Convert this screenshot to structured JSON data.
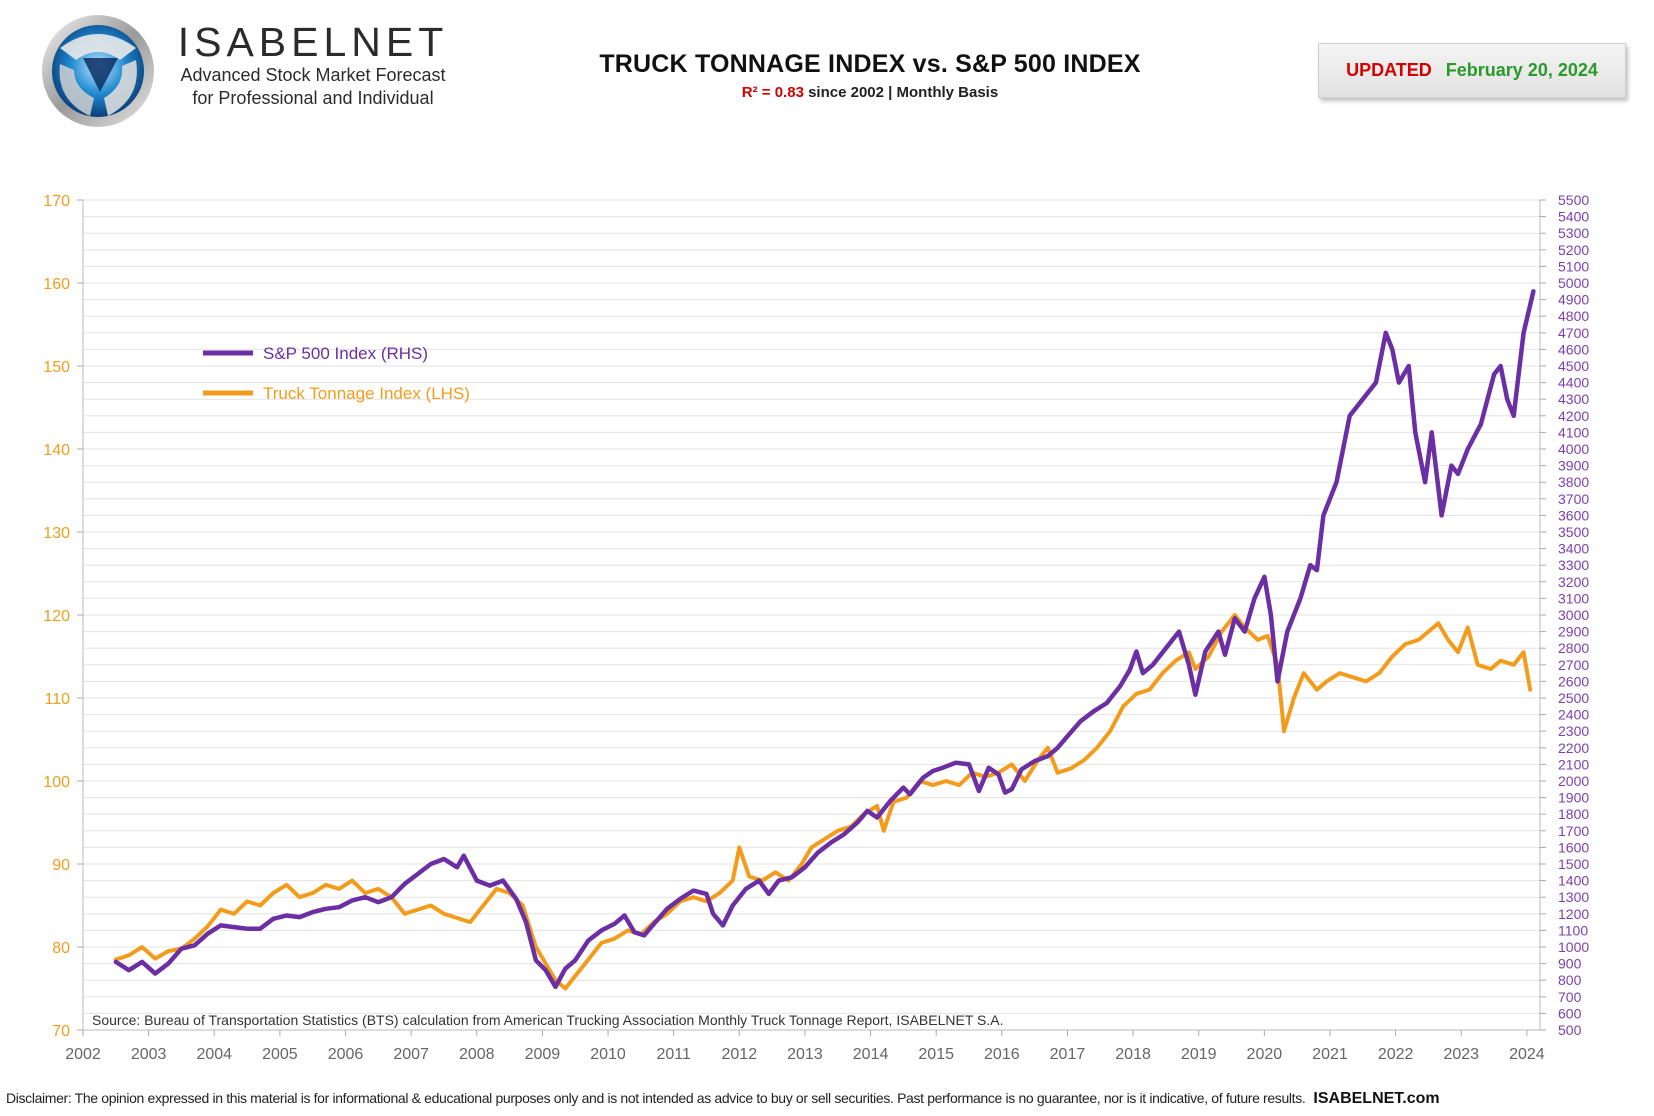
{
  "brand": {
    "name": "ISABELNET",
    "tagline_1": "Advanced Stock Market Forecast",
    "tagline_2": "for Professional and Individual"
  },
  "header": {
    "title": "TRUCK TONNAGE INDEX vs. S&P 500 INDEX",
    "r2_label": "R² = 0.83",
    "subtitle_rest": " since 2002 | Monthly Basis",
    "updated_label": "UPDATED",
    "updated_date": "February 20, 2024"
  },
  "chart_data": {
    "type": "line",
    "colors": {
      "sp500": "#6b2fa3",
      "truck": "#f39c1c",
      "left_axis": "#f39c1c",
      "right_axis": "#7b3fb0"
    },
    "x_ticks": [
      "2002",
      "2003",
      "2004",
      "2005",
      "2006",
      "2007",
      "2008",
      "2009",
      "2010",
      "2011",
      "2012",
      "2013",
      "2014",
      "2015",
      "2016",
      "2017",
      "2018",
      "2019",
      "2020",
      "2021",
      "2022",
      "2023",
      "2024"
    ],
    "x_range": [
      2002.0,
      2024.2
    ],
    "y_left": {
      "label": "Truck Tonnage Index (LHS)",
      "range": [
        70,
        170
      ],
      "ticks": [
        70,
        80,
        90,
        100,
        110,
        120,
        130,
        140,
        150,
        160,
        170
      ]
    },
    "y_right": {
      "label": "S&P 500 Index (RHS)",
      "range": [
        500,
        5500
      ],
      "ticks": [
        500,
        600,
        700,
        800,
        900,
        1000,
        1100,
        1200,
        1300,
        1400,
        1500,
        1600,
        1700,
        1800,
        1900,
        2000,
        2100,
        2200,
        2300,
        2400,
        2500,
        2600,
        2700,
        2800,
        2900,
        3000,
        3100,
        3200,
        3300,
        3400,
        3500,
        3600,
        3700,
        3800,
        3900,
        4000,
        4100,
        4200,
        4300,
        4400,
        4500,
        4600,
        4700,
        4800,
        4900,
        5000,
        5100,
        5200,
        5300,
        5400,
        5500
      ]
    },
    "legend_position": "top-left",
    "grid": true,
    "series": [
      {
        "name": "S&P 500 Index (RHS)",
        "axis": "right",
        "points": [
          [
            2002.5,
            910
          ],
          [
            2002.7,
            860
          ],
          [
            2002.9,
            910
          ],
          [
            2003.1,
            840
          ],
          [
            2003.3,
            900
          ],
          [
            2003.5,
            990
          ],
          [
            2003.7,
            1010
          ],
          [
            2003.9,
            1080
          ],
          [
            2004.1,
            1130
          ],
          [
            2004.3,
            1120
          ],
          [
            2004.5,
            1110
          ],
          [
            2004.7,
            1110
          ],
          [
            2004.9,
            1170
          ],
          [
            2005.1,
            1190
          ],
          [
            2005.3,
            1180
          ],
          [
            2005.5,
            1210
          ],
          [
            2005.7,
            1230
          ],
          [
            2005.9,
            1240
          ],
          [
            2006.1,
            1280
          ],
          [
            2006.3,
            1300
          ],
          [
            2006.5,
            1270
          ],
          [
            2006.7,
            1300
          ],
          [
            2006.9,
            1380
          ],
          [
            2007.1,
            1440
          ],
          [
            2007.3,
            1500
          ],
          [
            2007.5,
            1530
          ],
          [
            2007.7,
            1480
          ],
          [
            2007.8,
            1550
          ],
          [
            2008.0,
            1400
          ],
          [
            2008.2,
            1370
          ],
          [
            2008.4,
            1400
          ],
          [
            2008.6,
            1290
          ],
          [
            2008.75,
            1150
          ],
          [
            2008.9,
            920
          ],
          [
            2009.05,
            860
          ],
          [
            2009.2,
            760
          ],
          [
            2009.35,
            870
          ],
          [
            2009.5,
            920
          ],
          [
            2009.7,
            1040
          ],
          [
            2009.9,
            1100
          ],
          [
            2010.1,
            1140
          ],
          [
            2010.25,
            1190
          ],
          [
            2010.4,
            1090
          ],
          [
            2010.55,
            1070
          ],
          [
            2010.7,
            1140
          ],
          [
            2010.9,
            1230
          ],
          [
            2011.1,
            1290
          ],
          [
            2011.3,
            1340
          ],
          [
            2011.5,
            1320
          ],
          [
            2011.6,
            1200
          ],
          [
            2011.75,
            1130
          ],
          [
            2011.9,
            1250
          ],
          [
            2012.1,
            1350
          ],
          [
            2012.3,
            1400
          ],
          [
            2012.45,
            1320
          ],
          [
            2012.6,
            1400
          ],
          [
            2012.8,
            1420
          ],
          [
            2013.0,
            1480
          ],
          [
            2013.2,
            1570
          ],
          [
            2013.4,
            1630
          ],
          [
            2013.6,
            1680
          ],
          [
            2013.8,
            1750
          ],
          [
            2013.95,
            1820
          ],
          [
            2014.1,
            1780
          ],
          [
            2014.3,
            1880
          ],
          [
            2014.5,
            1960
          ],
          [
            2014.6,
            1920
          ],
          [
            2014.8,
            2020
          ],
          [
            2014.95,
            2060
          ],
          [
            2015.1,
            2080
          ],
          [
            2015.3,
            2110
          ],
          [
            2015.5,
            2100
          ],
          [
            2015.65,
            1940
          ],
          [
            2015.8,
            2080
          ],
          [
            2015.95,
            2040
          ],
          [
            2016.05,
            1930
          ],
          [
            2016.15,
            1950
          ],
          [
            2016.3,
            2070
          ],
          [
            2016.5,
            2120
          ],
          [
            2016.7,
            2150
          ],
          [
            2016.85,
            2200
          ],
          [
            2017.0,
            2270
          ],
          [
            2017.2,
            2360
          ],
          [
            2017.4,
            2420
          ],
          [
            2017.6,
            2470
          ],
          [
            2017.8,
            2570
          ],
          [
            2017.95,
            2670
          ],
          [
            2018.05,
            2780
          ],
          [
            2018.15,
            2650
          ],
          [
            2018.3,
            2700
          ],
          [
            2018.5,
            2800
          ],
          [
            2018.7,
            2900
          ],
          [
            2018.85,
            2700
          ],
          [
            2018.95,
            2520
          ],
          [
            2019.1,
            2780
          ],
          [
            2019.3,
            2900
          ],
          [
            2019.4,
            2760
          ],
          [
            2019.55,
            2980
          ],
          [
            2019.7,
            2900
          ],
          [
            2019.85,
            3100
          ],
          [
            2020.0,
            3230
          ],
          [
            2020.1,
            3000
          ],
          [
            2020.2,
            2600
          ],
          [
            2020.35,
            2900
          ],
          [
            2020.55,
            3100
          ],
          [
            2020.7,
            3300
          ],
          [
            2020.8,
            3270
          ],
          [
            2020.9,
            3600
          ],
          [
            2021.1,
            3800
          ],
          [
            2021.3,
            4200
          ],
          [
            2021.5,
            4300
          ],
          [
            2021.7,
            4400
          ],
          [
            2021.85,
            4700
          ],
          [
            2021.95,
            4600
          ],
          [
            2022.05,
            4400
          ],
          [
            2022.2,
            4500
          ],
          [
            2022.3,
            4100
          ],
          [
            2022.45,
            3800
          ],
          [
            2022.55,
            4100
          ],
          [
            2022.7,
            3600
          ],
          [
            2022.85,
            3900
          ],
          [
            2022.95,
            3850
          ],
          [
            2023.1,
            4000
          ],
          [
            2023.3,
            4150
          ],
          [
            2023.5,
            4450
          ],
          [
            2023.6,
            4500
          ],
          [
            2023.7,
            4300
          ],
          [
            2023.8,
            4200
          ],
          [
            2023.95,
            4700
          ],
          [
            2024.1,
            4950
          ]
        ]
      },
      {
        "name": "Truck Tonnage Index (LHS)",
        "axis": "left",
        "points": [
          [
            2002.5,
            78.5
          ],
          [
            2002.7,
            79.0
          ],
          [
            2002.9,
            80.0
          ],
          [
            2003.1,
            78.6
          ],
          [
            2003.3,
            79.5
          ],
          [
            2003.5,
            79.8
          ],
          [
            2003.7,
            81.0
          ],
          [
            2003.9,
            82.5
          ],
          [
            2004.1,
            84.5
          ],
          [
            2004.3,
            84.0
          ],
          [
            2004.5,
            85.5
          ],
          [
            2004.7,
            85.0
          ],
          [
            2004.9,
            86.5
          ],
          [
            2005.1,
            87.5
          ],
          [
            2005.3,
            86.0
          ],
          [
            2005.5,
            86.5
          ],
          [
            2005.7,
            87.5
          ],
          [
            2005.9,
            87.0
          ],
          [
            2006.1,
            88.0
          ],
          [
            2006.3,
            86.5
          ],
          [
            2006.5,
            87.0
          ],
          [
            2006.7,
            86.0
          ],
          [
            2006.9,
            84.0
          ],
          [
            2007.1,
            84.5
          ],
          [
            2007.3,
            85.0
          ],
          [
            2007.5,
            84.0
          ],
          [
            2007.7,
            83.5
          ],
          [
            2007.9,
            83.0
          ],
          [
            2008.1,
            85.0
          ],
          [
            2008.3,
            87.0
          ],
          [
            2008.5,
            86.5
          ],
          [
            2008.7,
            85.0
          ],
          [
            2008.9,
            80.0
          ],
          [
            2009.05,
            78.0
          ],
          [
            2009.2,
            76.0
          ],
          [
            2009.35,
            75.0
          ],
          [
            2009.5,
            76.5
          ],
          [
            2009.7,
            78.5
          ],
          [
            2009.9,
            80.5
          ],
          [
            2010.1,
            81.0
          ],
          [
            2010.3,
            82.0
          ],
          [
            2010.5,
            81.5
          ],
          [
            2010.7,
            83.0
          ],
          [
            2010.9,
            84.0
          ],
          [
            2011.1,
            85.5
          ],
          [
            2011.3,
            86.0
          ],
          [
            2011.5,
            85.5
          ],
          [
            2011.7,
            86.5
          ],
          [
            2011.9,
            88.0
          ],
          [
            2012.0,
            92.0
          ],
          [
            2012.15,
            88.5
          ],
          [
            2012.35,
            88.0
          ],
          [
            2012.55,
            89.0
          ],
          [
            2012.75,
            88.0
          ],
          [
            2012.95,
            90.0
          ],
          [
            2013.1,
            92.0
          ],
          [
            2013.3,
            93.0
          ],
          [
            2013.5,
            94.0
          ],
          [
            2013.7,
            94.5
          ],
          [
            2013.9,
            96.0
          ],
          [
            2014.1,
            97.0
          ],
          [
            2014.2,
            94.0
          ],
          [
            2014.35,
            97.5
          ],
          [
            2014.55,
            98.0
          ],
          [
            2014.75,
            100.0
          ],
          [
            2014.95,
            99.5
          ],
          [
            2015.15,
            100.0
          ],
          [
            2015.35,
            99.5
          ],
          [
            2015.55,
            101.0
          ],
          [
            2015.75,
            100.5
          ],
          [
            2015.95,
            101.0
          ],
          [
            2016.15,
            102.0
          ],
          [
            2016.35,
            100.0
          ],
          [
            2016.55,
            102.5
          ],
          [
            2016.7,
            104.0
          ],
          [
            2016.85,
            101.0
          ],
          [
            2017.05,
            101.5
          ],
          [
            2017.25,
            102.5
          ],
          [
            2017.45,
            104.0
          ],
          [
            2017.65,
            106.0
          ],
          [
            2017.85,
            109.0
          ],
          [
            2018.05,
            110.5
          ],
          [
            2018.25,
            111.0
          ],
          [
            2018.45,
            113.0
          ],
          [
            2018.65,
            114.5
          ],
          [
            2018.85,
            115.5
          ],
          [
            2018.95,
            113.5
          ],
          [
            2019.15,
            115.0
          ],
          [
            2019.35,
            118.0
          ],
          [
            2019.55,
            120.0
          ],
          [
            2019.7,
            118.5
          ],
          [
            2019.9,
            117.0
          ],
          [
            2020.05,
            117.5
          ],
          [
            2020.2,
            114.0
          ],
          [
            2020.3,
            106.0
          ],
          [
            2020.45,
            110.0
          ],
          [
            2020.6,
            113.0
          ],
          [
            2020.8,
            111.0
          ],
          [
            2020.95,
            112.0
          ],
          [
            2021.15,
            113.0
          ],
          [
            2021.35,
            112.5
          ],
          [
            2021.55,
            112.0
          ],
          [
            2021.75,
            113.0
          ],
          [
            2021.95,
            115.0
          ],
          [
            2022.15,
            116.5
          ],
          [
            2022.35,
            117.0
          ],
          [
            2022.5,
            118.0
          ],
          [
            2022.65,
            119.0
          ],
          [
            2022.8,
            117.0
          ],
          [
            2022.95,
            115.5
          ],
          [
            2023.1,
            118.5
          ],
          [
            2023.25,
            114.0
          ],
          [
            2023.45,
            113.5
          ],
          [
            2023.6,
            114.5
          ],
          [
            2023.8,
            114.0
          ],
          [
            2023.95,
            115.5
          ],
          [
            2024.05,
            111.0
          ]
        ]
      }
    ],
    "source": "Source: Bureau of Transportation Statistics (BTS) calculation from American Trucking Association Monthly Truck Tonnage Report, ISABELNET S.A."
  },
  "footer": {
    "disclaimer": "Disclaimer: The opinion expressed in this material is for informational & educational purposes only and is not intended as advice to buy or sell securities. Past performance is no guarantee, nor is it indicative, of future results.",
    "site": "ISABELNET.com"
  }
}
